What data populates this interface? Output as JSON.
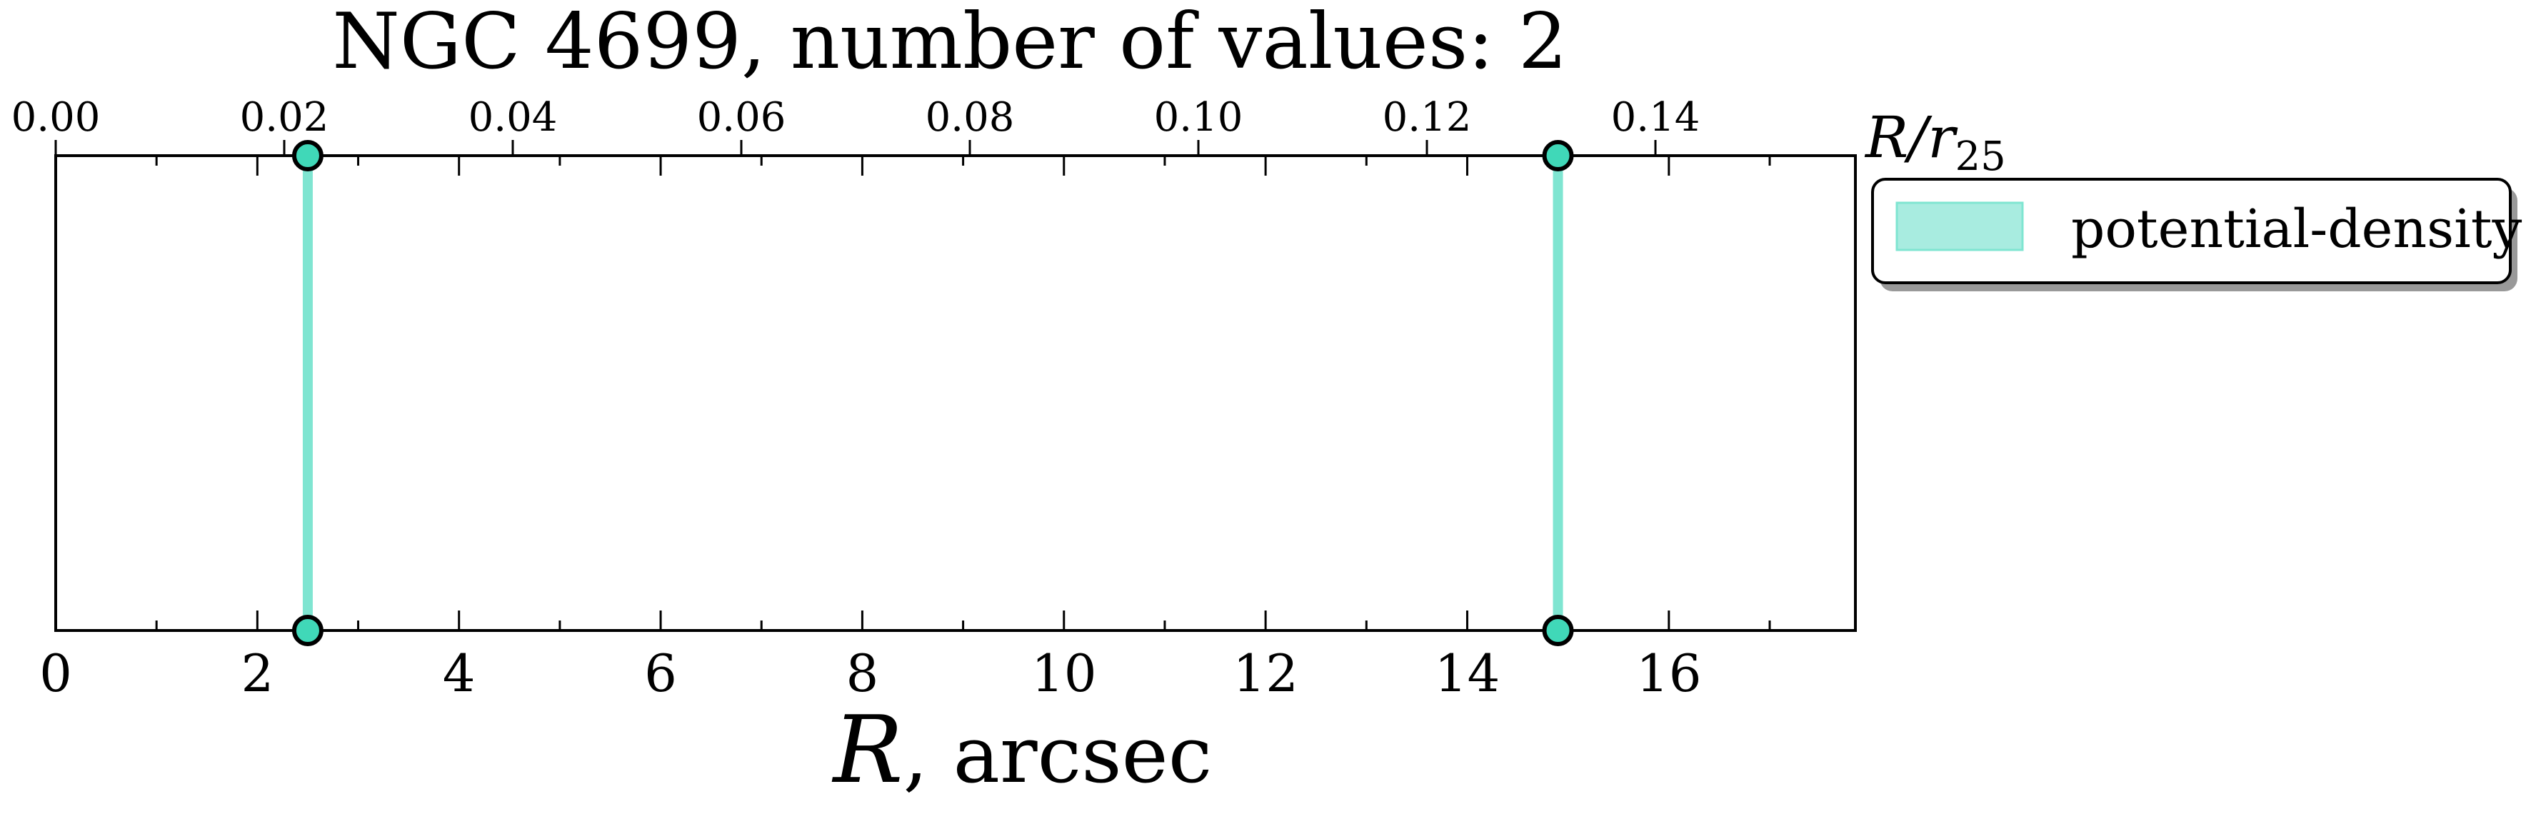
{
  "chart_data": {
    "type": "scatter",
    "title": "NGC 4699, number of values: 2",
    "xlabel_symbol": "R",
    "xlabel_unit": ", arcsec",
    "top_xlabel_symbol": "R/r",
    "top_xlabel_subscript": "25",
    "xlim": [
      0,
      17.85
    ],
    "x_ticks": [
      0,
      2,
      4,
      6,
      8,
      10,
      12,
      14,
      16
    ],
    "x_tick_labels": [
      "0",
      "2",
      "4",
      "6",
      "8",
      "10",
      "12",
      "14",
      "16"
    ],
    "top_xlim": [
      0,
      0.1575
    ],
    "top_ticks": [
      0.0,
      0.02,
      0.04,
      0.06,
      0.08,
      0.1,
      0.12,
      0.14
    ],
    "top_tick_labels": [
      "0.00",
      "0.02",
      "0.04",
      "0.06",
      "0.08",
      "0.10",
      "0.12",
      "0.14"
    ],
    "series": [
      {
        "name": "potential-density",
        "color": "#40e0c0",
        "x": [
          2.5,
          14.9
        ]
      }
    ],
    "legend_position": "upper right, outside axes",
    "grid": false
  },
  "colors": {
    "series_fill": "#a8ece0",
    "series_line": "#7fe5d1",
    "marker_face": "#40d8b8",
    "axis": "#000000"
  }
}
